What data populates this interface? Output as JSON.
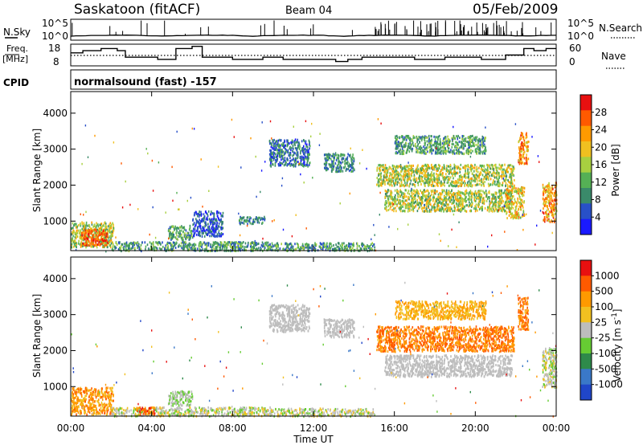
{
  "header": {
    "station": "Saskatoon (fitACF)",
    "beam": "Beam 04",
    "date": "05/Feb/2009"
  },
  "strips": {
    "nsky_label": "N.Sky",
    "nsky_ticks": [
      "10^5",
      "10^0"
    ],
    "nsearch_ticks": [
      "10^5",
      "10^0"
    ],
    "nsearch_label": "N.Search",
    "freq_label_1": "Freq.",
    "freq_label_2": "[MHz]",
    "freq_ticks": [
      "18",
      "8"
    ],
    "nave_ticks": [
      "60",
      "0"
    ],
    "nave_label": "Nave",
    "cpid_label": "CPID",
    "cpid_value": "normalsound (fast) -157"
  },
  "colors": {
    "power": [
      "#1a1aff",
      "#2850c8",
      "#3a8a6a",
      "#55b055",
      "#a8d040",
      "#f0c020",
      "#ff9a00",
      "#ff5a00",
      "#e81010"
    ],
    "velocity": [
      "#2046c8",
      "#3a78c8",
      "#2e8a4a",
      "#66cc33",
      "#bdbdbd",
      "#f2c020",
      "#ff9a00",
      "#ff5a00",
      "#e81010"
    ]
  },
  "chart_data": [
    {
      "type": "heatmap",
      "panel": "power",
      "ylabel": "Slant Range [km]",
      "ylim": [
        180,
        4600
      ],
      "yticks": [
        "4000",
        "3000",
        "2000",
        "1000"
      ],
      "colorbar_label": "Power [dB]",
      "colorbar_ticks": [
        "28",
        "24",
        "20",
        "16",
        "12",
        "8",
        "4"
      ],
      "regions": [
        {
          "t": [
            0.0,
            2.1
          ],
          "r": [
            300,
            1000
          ],
          "level": [
            2,
            6
          ]
        },
        {
          "t": [
            0.5,
            1.8
          ],
          "r": [
            350,
            800
          ],
          "level": [
            6,
            8
          ]
        },
        {
          "t": [
            2.0,
            10.0
          ],
          "r": [
            200,
            450
          ],
          "level": [
            1,
            4
          ]
        },
        {
          "t": [
            4.8,
            6.0
          ],
          "r": [
            500,
            900
          ],
          "level": [
            1,
            4
          ]
        },
        {
          "t": [
            6.0,
            7.5
          ],
          "r": [
            600,
            1300
          ],
          "level": [
            0,
            2
          ]
        },
        {
          "t": [
            8.3,
            9.6
          ],
          "r": [
            950,
            1150
          ],
          "level": [
            1,
            3
          ]
        },
        {
          "t": [
            9.8,
            11.8
          ],
          "r": [
            2550,
            3300
          ],
          "level": [
            0,
            3
          ]
        },
        {
          "t": [
            12.5,
            14.0
          ],
          "r": [
            2400,
            2900
          ],
          "level": [
            1,
            3
          ]
        },
        {
          "t": [
            15.1,
            21.9
          ],
          "r": [
            2000,
            2600
          ],
          "level": [
            2,
            6
          ]
        },
        {
          "t": [
            15.5,
            21.8
          ],
          "r": [
            1300,
            1900
          ],
          "level": [
            2,
            6
          ]
        },
        {
          "t": [
            16.0,
            20.5
          ],
          "r": [
            2900,
            3400
          ],
          "level": [
            1,
            4
          ]
        },
        {
          "t": [
            21.5,
            22.4
          ],
          "r": [
            1100,
            2000
          ],
          "level": [
            3,
            7
          ]
        },
        {
          "t": [
            22.1,
            22.6
          ],
          "r": [
            2600,
            3500
          ],
          "level": [
            4,
            8
          ]
        },
        {
          "t": [
            23.3,
            24.0
          ],
          "r": [
            1000,
            2100
          ],
          "level": [
            4,
            8
          ]
        },
        {
          "t": [
            10.0,
            15.0
          ],
          "r": [
            200,
            420
          ],
          "level": [
            1,
            4
          ]
        }
      ]
    },
    {
      "type": "heatmap",
      "panel": "velocity",
      "xlabel": "Time UT",
      "xticks": [
        "00:00",
        "04:00",
        "08:00",
        "12:00",
        "16:00",
        "20:00",
        "00:00"
      ],
      "ylabel": "Slant Range [km]",
      "ylim": [
        180,
        4600
      ],
      "yticks": [
        "4000",
        "3000",
        "2000",
        "1000"
      ],
      "colorbar_label": "Velocity [m s^-1]",
      "colorbar_ticks": [
        "1000",
        "500",
        "100",
        "25",
        "-25",
        "-100",
        "-500",
        "-1000"
      ],
      "regions": [
        {
          "t": [
            0.0,
            2.1
          ],
          "r": [
            250,
            1000
          ],
          "level": [
            5,
            7
          ]
        },
        {
          "t": [
            2.0,
            10.0
          ],
          "r": [
            200,
            450
          ],
          "level": [
            3,
            5
          ]
        },
        {
          "t": [
            3.2,
            4.2
          ],
          "r": [
            250,
            450
          ],
          "level": [
            6,
            8
          ]
        },
        {
          "t": [
            4.8,
            6.0
          ],
          "r": [
            500,
            900
          ],
          "level": [
            3,
            4
          ]
        },
        {
          "t": [
            9.8,
            11.8
          ],
          "r": [
            2550,
            3300
          ],
          "level": [
            4,
            4
          ]
        },
        {
          "t": [
            12.5,
            14.0
          ],
          "r": [
            2400,
            2900
          ],
          "level": [
            4,
            4
          ]
        },
        {
          "t": [
            15.1,
            21.9
          ],
          "r": [
            2000,
            2700
          ],
          "level": [
            6,
            7
          ]
        },
        {
          "t": [
            15.5,
            21.8
          ],
          "r": [
            1300,
            1900
          ],
          "level": [
            4,
            4
          ]
        },
        {
          "t": [
            16.0,
            20.5
          ],
          "r": [
            2900,
            3400
          ],
          "level": [
            5,
            6
          ]
        },
        {
          "t": [
            22.1,
            22.6
          ],
          "r": [
            2600,
            3500
          ],
          "level": [
            6,
            7
          ]
        },
        {
          "t": [
            23.3,
            24.0
          ],
          "r": [
            1000,
            2100
          ],
          "level": [
            3,
            5
          ]
        },
        {
          "t": [
            10.0,
            15.0
          ],
          "r": [
            200,
            420
          ],
          "level": [
            3,
            5
          ]
        }
      ]
    },
    {
      "type": "line",
      "panel": "nsky",
      "log_scale": true,
      "ylim": [
        1,
        100000
      ]
    },
    {
      "type": "line",
      "panel": "frequency",
      "ylim": [
        8,
        18
      ],
      "x": [
        0,
        0.6,
        1.5,
        2.3,
        2.7,
        4.3,
        5.2,
        6.0,
        6.5,
        8.0,
        9.5,
        10.5,
        13.1,
        13.7,
        14.4,
        17.0,
        18.5,
        20.3,
        21.5,
        22.4,
        22.9,
        23.5
      ],
      "y": [
        14,
        15,
        16,
        15,
        12,
        11,
        16,
        17,
        12,
        11,
        12,
        11,
        10,
        11,
        12,
        11,
        12,
        11,
        13,
        16,
        15,
        16
      ]
    }
  ]
}
